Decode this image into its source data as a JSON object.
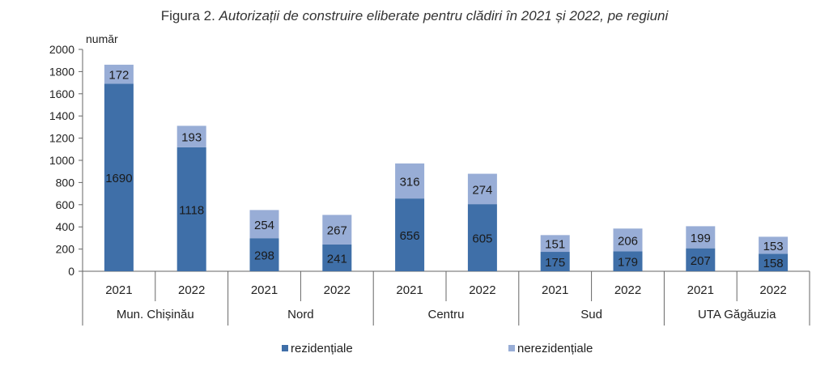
{
  "title": {
    "prefix": "Figura 2. ",
    "main": "Autorizații de construire eliberate pentru clădiri în 2021 și 2022, pe regiuni"
  },
  "colors": {
    "rezidentiale": "#3f6fa8",
    "nerezidentiale": "#98add6"
  },
  "chart_data": {
    "type": "bar",
    "stacked": true,
    "ylabel": "număr",
    "ylim": [
      0,
      2000
    ],
    "yticks": [
      0,
      200,
      400,
      600,
      800,
      1000,
      1200,
      1400,
      1600,
      1800,
      2000
    ],
    "groups": [
      "Mun. Chișinău",
      "Nord",
      "Centru",
      "Sud",
      "UTA Găgăuzia"
    ],
    "years": [
      "2021",
      "2022"
    ],
    "series": [
      {
        "name": "rezidențiale",
        "values": [
          1690,
          1118,
          298,
          241,
          656,
          605,
          175,
          179,
          207,
          158
        ]
      },
      {
        "name": "nerezidențiale",
        "values": [
          172,
          193,
          254,
          267,
          316,
          274,
          151,
          206,
          199,
          153
        ]
      }
    ],
    "legend_position": "bottom"
  }
}
